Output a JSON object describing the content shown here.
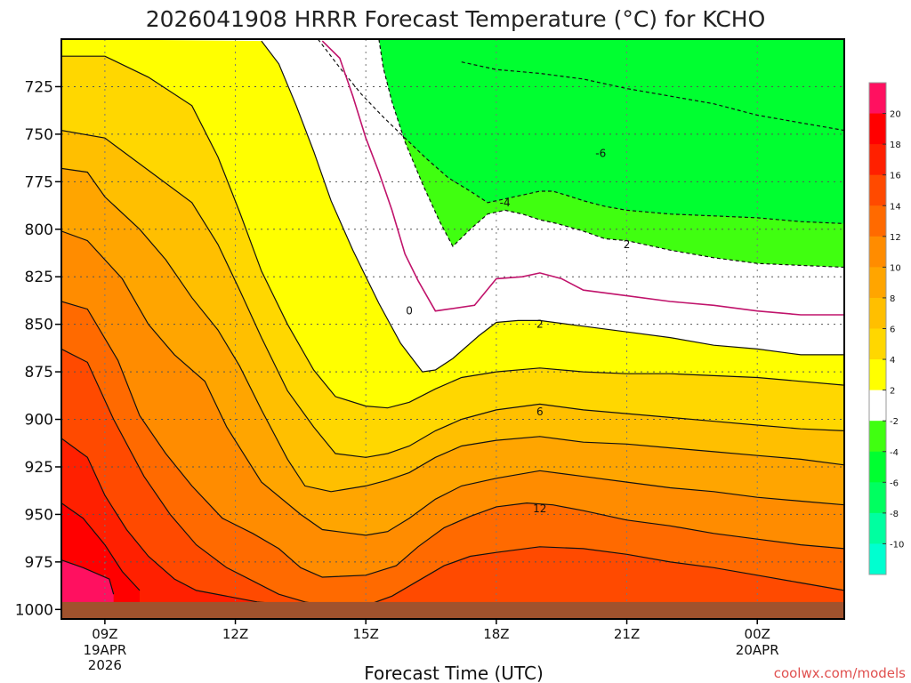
{
  "chart_data": {
    "type": "heatmap",
    "title": "2026041908 HRRR Forecast Temperature (°C) for KCHO",
    "xlabel": "Forecast Time (UTC)",
    "ylabel": "",
    "x_ticks": [
      {
        "hour": 9,
        "label": "09Z",
        "sub": [
          "19APR",
          "2026"
        ]
      },
      {
        "hour": 12,
        "label": "12Z",
        "sub": []
      },
      {
        "hour": 15,
        "label": "15Z",
        "sub": []
      },
      {
        "hour": 18,
        "label": "18Z",
        "sub": []
      },
      {
        "hour": 21,
        "label": "21Z",
        "sub": []
      },
      {
        "hour": 24,
        "label": "00Z",
        "sub": [
          "20APR"
        ]
      }
    ],
    "xlim": [
      8,
      26
    ],
    "y_ticks": [
      725,
      750,
      775,
      800,
      825,
      850,
      875,
      900,
      925,
      950,
      975,
      1000
    ],
    "ylim": [
      700,
      1005
    ],
    "grid": true,
    "colorbar": {
      "levels": [
        -12,
        -10,
        -8,
        -6,
        -4,
        -2,
        2,
        4,
        6,
        8,
        10,
        12,
        14,
        16,
        18,
        20,
        22
      ],
      "labels": [
        -10,
        -8,
        -6,
        -4,
        -2,
        2,
        4,
        6,
        8,
        10,
        12,
        14,
        16,
        18,
        20
      ],
      "colors": [
        "#00ffd0",
        "#00ffa0",
        "#00ff60",
        "#00ff30",
        "#40ff10",
        "#ffffff",
        "#ffff00",
        "#ffd700",
        "#ffbf00",
        "#ffa500",
        "#ff8c00",
        "#ff6a00",
        "#ff4a00",
        "#ff2000",
        "#ff0000",
        "#ff1060"
      ]
    },
    "contours": [
      {
        "value": -6,
        "dashed": true,
        "pts": [
          [
            17.2,
            712
          ],
          [
            18,
            716
          ],
          [
            19,
            718
          ],
          [
            20,
            721
          ],
          [
            21,
            726
          ],
          [
            22,
            730
          ],
          [
            23,
            734
          ],
          [
            24,
            740
          ],
          [
            25,
            744
          ],
          [
            26,
            748
          ]
        ]
      },
      {
        "value": -4,
        "dashed": true,
        "pts": [
          [
            13.9,
            700
          ],
          [
            14.4,
            715
          ],
          [
            14.9,
            729
          ],
          [
            15.4,
            741
          ],
          [
            15.9,
            752
          ],
          [
            16.4,
            763
          ],
          [
            16.9,
            773
          ],
          [
            17.4,
            780
          ],
          [
            17.8,
            786
          ],
          [
            18.2,
            784
          ],
          [
            18.6,
            782
          ],
          [
            19,
            780
          ],
          [
            19.3,
            780
          ],
          [
            19.6,
            782
          ],
          [
            20,
            785
          ],
          [
            20.5,
            788
          ],
          [
            21,
            790
          ],
          [
            22,
            792
          ],
          [
            23,
            793
          ],
          [
            24,
            794
          ],
          [
            25,
            796
          ],
          [
            26,
            797
          ]
        ]
      },
      {
        "value": -2,
        "dashed": true,
        "pts": [
          [
            15.3,
            700
          ],
          [
            15.4,
            715
          ],
          [
            15.6,
            733
          ],
          [
            15.9,
            754
          ],
          [
            16.3,
            776
          ],
          [
            16.7,
            796
          ],
          [
            17,
            809
          ],
          [
            17.4,
            800
          ],
          [
            17.8,
            792
          ],
          [
            18.2,
            790
          ],
          [
            18.6,
            792
          ],
          [
            19,
            795
          ],
          [
            19.4,
            797
          ],
          [
            20,
            801
          ],
          [
            20.5,
            805
          ],
          [
            21,
            806
          ],
          [
            22,
            811
          ],
          [
            23,
            815
          ],
          [
            24,
            818
          ],
          [
            25,
            819
          ],
          [
            26,
            820
          ]
        ]
      },
      {
        "value": 0,
        "dashed": false,
        "pts": [
          [
            14,
            701
          ],
          [
            14.4,
            710
          ],
          [
            14.7,
            730
          ],
          [
            15,
            752
          ],
          [
            15.3,
            770
          ],
          [
            15.6,
            790
          ],
          [
            15.9,
            813
          ],
          [
            16.2,
            827
          ],
          [
            16.6,
            843
          ],
          [
            16.9,
            842
          ],
          [
            17.5,
            840
          ],
          [
            18,
            826
          ],
          [
            18.6,
            825
          ],
          [
            19,
            823
          ],
          [
            19.5,
            826
          ],
          [
            20,
            832
          ],
          [
            21,
            835
          ],
          [
            22,
            838
          ],
          [
            23,
            840
          ],
          [
            24,
            843
          ],
          [
            25,
            845
          ],
          [
            26,
            845
          ]
        ]
      },
      {
        "value": 2,
        "dashed": false,
        "pts": [
          [
            12.6,
            701
          ],
          [
            13,
            713
          ],
          [
            13.4,
            735
          ],
          [
            13.8,
            759
          ],
          [
            14.2,
            785
          ],
          [
            14.7,
            811
          ],
          [
            15.3,
            839
          ],
          [
            15.8,
            860
          ],
          [
            16.3,
            875
          ],
          [
            16.6,
            874
          ],
          [
            17,
            868
          ],
          [
            17.6,
            856
          ],
          [
            18,
            849
          ],
          [
            18.5,
            848
          ],
          [
            19,
            848
          ],
          [
            20,
            851
          ],
          [
            21,
            854
          ],
          [
            22,
            857
          ],
          [
            23,
            861
          ],
          [
            24,
            863
          ],
          [
            25,
            866
          ],
          [
            26,
            866
          ]
        ]
      },
      {
        "value": 4,
        "dashed": false,
        "pts": [
          [
            8,
            709
          ],
          [
            9,
            709
          ],
          [
            10,
            720
          ],
          [
            11,
            735
          ],
          [
            11.6,
            762
          ],
          [
            12.1,
            791
          ],
          [
            12.6,
            822
          ],
          [
            13.2,
            850
          ],
          [
            13.8,
            874
          ],
          [
            14.3,
            888
          ],
          [
            15,
            893
          ],
          [
            15.5,
            894
          ],
          [
            16,
            891
          ],
          [
            16.6,
            884
          ],
          [
            17.2,
            878
          ],
          [
            18,
            875
          ],
          [
            19,
            873
          ],
          [
            20,
            875
          ],
          [
            21,
            876
          ],
          [
            22,
            876
          ],
          [
            23,
            877
          ],
          [
            24,
            878
          ],
          [
            25,
            880
          ],
          [
            26,
            882
          ]
        ]
      },
      {
        "value": 6,
        "dashed": false,
        "pts": [
          [
            8,
            748
          ],
          [
            9,
            752
          ],
          [
            10,
            769
          ],
          [
            11,
            786
          ],
          [
            11.6,
            808
          ],
          [
            12.1,
            832
          ],
          [
            12.6,
            857
          ],
          [
            13.2,
            885
          ],
          [
            13.8,
            904
          ],
          [
            14.3,
            918
          ],
          [
            15,
            920
          ],
          [
            15.5,
            918
          ],
          [
            16,
            914
          ],
          [
            16.6,
            906
          ],
          [
            17.2,
            900
          ],
          [
            18,
            895
          ],
          [
            19,
            892
          ],
          [
            20,
            895
          ],
          [
            21,
            897
          ],
          [
            22,
            899
          ],
          [
            23,
            901
          ],
          [
            24,
            903
          ],
          [
            25,
            905
          ],
          [
            26,
            906
          ]
        ]
      },
      {
        "value": 8,
        "dashed": false,
        "pts": [
          [
            8,
            768
          ],
          [
            8.6,
            770
          ],
          [
            9,
            783
          ],
          [
            9.8,
            800
          ],
          [
            10.4,
            816
          ],
          [
            11,
            836
          ],
          [
            11.6,
            853
          ],
          [
            12.1,
            872
          ],
          [
            12.6,
            895
          ],
          [
            13.2,
            921
          ],
          [
            13.6,
            935
          ],
          [
            14.2,
            938
          ],
          [
            15,
            935
          ],
          [
            15.5,
            932
          ],
          [
            16,
            928
          ],
          [
            16.6,
            920
          ],
          [
            17.2,
            914
          ],
          [
            18,
            911
          ],
          [
            19,
            909
          ],
          [
            20,
            912
          ],
          [
            21,
            913
          ],
          [
            22,
            915
          ],
          [
            23,
            917
          ],
          [
            24,
            919
          ],
          [
            25,
            921
          ],
          [
            26,
            924
          ]
        ]
      },
      {
        "value": 10,
        "dashed": false,
        "pts": [
          [
            8,
            801
          ],
          [
            8.6,
            806
          ],
          [
            9.4,
            826
          ],
          [
            10,
            850
          ],
          [
            10.6,
            866
          ],
          [
            11.3,
            880
          ],
          [
            11.8,
            904
          ],
          [
            12.6,
            933
          ],
          [
            13.5,
            950
          ],
          [
            14,
            958
          ],
          [
            15,
            961
          ],
          [
            15.5,
            959
          ],
          [
            16,
            952
          ],
          [
            16.6,
            942
          ],
          [
            17.2,
            935
          ],
          [
            18,
            931
          ],
          [
            19,
            927
          ],
          [
            20,
            930
          ],
          [
            21,
            933
          ],
          [
            22,
            936
          ],
          [
            23,
            938
          ],
          [
            24,
            941
          ],
          [
            25,
            943
          ],
          [
            26,
            945
          ]
        ]
      },
      {
        "value": 12,
        "dashed": false,
        "pts": [
          [
            8,
            838
          ],
          [
            8.6,
            842
          ],
          [
            9.3,
            869
          ],
          [
            9.8,
            898
          ],
          [
            10.4,
            918
          ],
          [
            11,
            935
          ],
          [
            11.7,
            952
          ],
          [
            12.4,
            960
          ],
          [
            13,
            968
          ],
          [
            13.5,
            978
          ],
          [
            14,
            983
          ],
          [
            15,
            982
          ],
          [
            15.7,
            977
          ],
          [
            16.2,
            967
          ],
          [
            16.8,
            957
          ],
          [
            17.4,
            951
          ],
          [
            18,
            946
          ],
          [
            18.7,
            944
          ],
          [
            19.3,
            945
          ],
          [
            20,
            948
          ],
          [
            21,
            953
          ],
          [
            22,
            956
          ],
          [
            23,
            960
          ],
          [
            24,
            963
          ],
          [
            25,
            966
          ],
          [
            26,
            968
          ]
        ]
      },
      {
        "value": 14,
        "dashed": false,
        "pts": [
          [
            8,
            863
          ],
          [
            8.6,
            870
          ],
          [
            9.2,
            900
          ],
          [
            9.9,
            930
          ],
          [
            10.5,
            950
          ],
          [
            11.1,
            966
          ],
          [
            11.8,
            978
          ],
          [
            12.4,
            985
          ],
          [
            13,
            992
          ],
          [
            13.6,
            996
          ],
          [
            14.4,
            999
          ],
          [
            15,
            998
          ],
          [
            15.6,
            993
          ],
          [
            16.2,
            985
          ],
          [
            16.8,
            977
          ],
          [
            17.4,
            972
          ],
          [
            18,
            970
          ],
          [
            19,
            967
          ],
          [
            20,
            968
          ],
          [
            21,
            971
          ],
          [
            22,
            975
          ],
          [
            23,
            978
          ],
          [
            24,
            982
          ],
          [
            25,
            986
          ],
          [
            26,
            990
          ]
        ]
      },
      {
        "value": 16,
        "dashed": false,
        "pts": [
          [
            8,
            910
          ],
          [
            8.6,
            920
          ],
          [
            9,
            940
          ],
          [
            9.5,
            958
          ],
          [
            10,
            972
          ],
          [
            10.6,
            984
          ],
          [
            11.1,
            990
          ],
          [
            12.5,
            996
          ],
          [
            13.5,
            998
          ]
        ]
      },
      {
        "value": 18,
        "dashed": false,
        "pts": [
          [
            8,
            944
          ],
          [
            8.5,
            952
          ],
          [
            9,
            966
          ],
          [
            9.4,
            980
          ],
          [
            9.8,
            990
          ]
        ]
      },
      {
        "value": 20,
        "dashed": false,
        "pts": [
          [
            8,
            974
          ],
          [
            8.5,
            978
          ],
          [
            9.1,
            984
          ],
          [
            9.2,
            992
          ]
        ]
      }
    ],
    "contour_labels": [
      {
        "text": "-6",
        "x": 20.4,
        "y": 760
      },
      {
        "text": "-4",
        "x": 18.2,
        "y": 786
      },
      {
        "text": "2",
        "x": 21.0,
        "y": 808
      },
      {
        "text": "0",
        "x": 16.0,
        "y": 843
      },
      {
        "text": "2",
        "x": 19.0,
        "y": 850
      },
      {
        "text": "6",
        "x": 19.0,
        "y": 896
      },
      {
        "text": "12",
        "x": 19.0,
        "y": 947
      }
    ],
    "ground_level": 997
  },
  "credit": "coolwx.com/models"
}
